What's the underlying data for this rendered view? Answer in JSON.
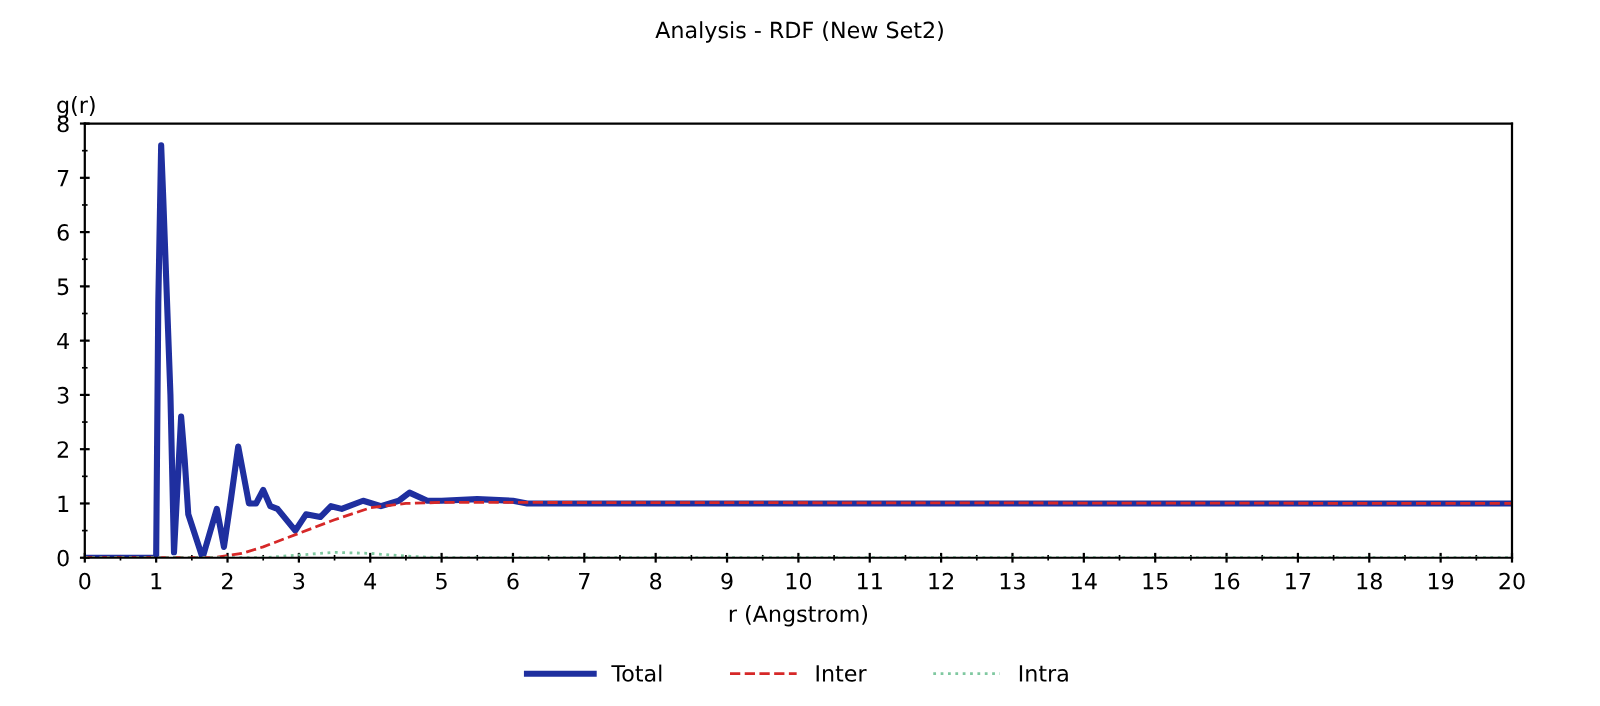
{
  "chart_data": {
    "type": "line",
    "title": "Analysis - RDF (New Set2)",
    "xlabel": "r (Angstrom)",
    "ylabel": "g(r)",
    "xlim": [
      0,
      20
    ],
    "ylim": [
      0,
      8
    ],
    "xticks": [
      0,
      1,
      2,
      3,
      4,
      5,
      6,
      7,
      8,
      9,
      10,
      11,
      12,
      13,
      14,
      15,
      16,
      17,
      18,
      19,
      20
    ],
    "yticks": [
      0,
      1,
      2,
      3,
      4,
      5,
      6,
      7,
      8
    ],
    "grid": false,
    "legend": "bottom",
    "marker": "none",
    "series": [
      {
        "name": "Total",
        "color": "#1f2f9f",
        "line_style": "solid",
        "x": [
          0,
          0.95,
          1.0,
          1.03,
          1.07,
          1.1,
          1.2,
          1.25,
          1.35,
          1.4,
          1.45,
          1.65,
          1.85,
          1.95,
          2.05,
          2.15,
          2.3,
          2.4,
          2.5,
          2.6,
          2.7,
          2.95,
          3.1,
          3.3,
          3.45,
          3.6,
          3.9,
          4.15,
          4.4,
          4.55,
          4.8,
          5.0,
          5.5,
          6.0,
          6.2,
          20
        ],
        "values": [
          0,
          0,
          0,
          4.7,
          7.6,
          6.6,
          3.0,
          0.1,
          2.6,
          1.8,
          0.8,
          0,
          0.9,
          0.2,
          1.1,
          2.05,
          1.0,
          1.0,
          1.25,
          0.95,
          0.9,
          0.5,
          0.8,
          0.75,
          0.95,
          0.9,
          1.05,
          0.95,
          1.05,
          1.2,
          1.05,
          1.05,
          1.08,
          1.05,
          1.0,
          1.0
        ]
      },
      {
        "name": "Inter",
        "color": "#d62828",
        "line_style": "dashed",
        "x": [
          0,
          1.8,
          2.2,
          2.5,
          3.0,
          3.5,
          4.0,
          4.5,
          5.0,
          20
        ],
        "values": [
          0,
          0,
          0.08,
          0.2,
          0.45,
          0.7,
          0.92,
          1.0,
          1.02,
          1.0
        ]
      },
      {
        "name": "Intra",
        "color": "#7fc8a0",
        "line_style": "dotted",
        "x": [
          0,
          2.5,
          3.0,
          3.5,
          4.0,
          4.5,
          5.0,
          20
        ],
        "values": [
          0,
          0,
          0.05,
          0.1,
          0.08,
          0.03,
          0,
          0
        ]
      }
    ]
  }
}
